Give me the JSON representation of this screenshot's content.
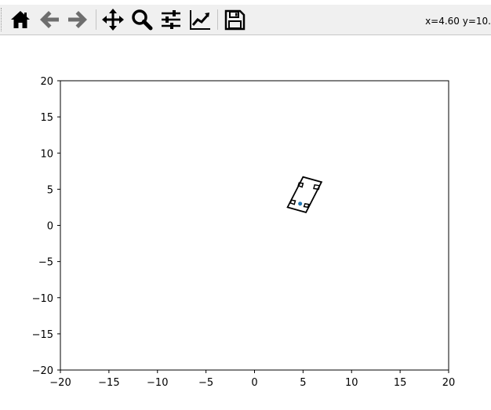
{
  "toolbar": {
    "buttons": [
      {
        "name": "home-button",
        "icon": "home-icon"
      },
      {
        "name": "back-button",
        "icon": "arrow-left-icon"
      },
      {
        "name": "forward-button",
        "icon": "arrow-right-icon"
      },
      {
        "name": "pan-button",
        "icon": "move-arrows-icon"
      },
      {
        "name": "zoom-button",
        "icon": "magnifier-icon"
      },
      {
        "name": "configure-subplots-button",
        "icon": "sliders-icon"
      },
      {
        "name": "edit-axis-button",
        "icon": "line-chart-icon"
      },
      {
        "name": "save-button",
        "icon": "floppy-disk-icon"
      }
    ],
    "coordinates": "x=4.60 y=10."
  },
  "chart_data": {
    "type": "line",
    "title": "",
    "xlabel": "",
    "ylabel": "",
    "xlim": [
      -20,
      20
    ],
    "ylim": [
      -20,
      20
    ],
    "xticks": [
      "−20",
      "−15",
      "−10",
      "−5",
      "0",
      "5",
      "10",
      "15",
      "20"
    ],
    "yticks": [
      "−20",
      "−15",
      "−10",
      "−5",
      "0",
      "5",
      "10",
      "15",
      "20"
    ],
    "xtick_values": [
      -20,
      -15,
      -10,
      -5,
      0,
      5,
      10,
      15,
      20
    ],
    "ytick_values": [
      -20,
      -15,
      -10,
      -5,
      0,
      5,
      10,
      15,
      20
    ],
    "grid": false,
    "series": [
      {
        "kind": "polygon",
        "color": "#000000",
        "points": [
          [
            3.4,
            2.5
          ],
          [
            5.3,
            1.8
          ],
          [
            6.9,
            6.0
          ],
          [
            5.0,
            6.7
          ]
        ]
      },
      {
        "kind": "polygon",
        "color": "#000000",
        "points": [
          [
            4.5,
            5.5
          ],
          [
            4.9,
            5.3
          ],
          [
            5.0,
            5.8
          ],
          [
            4.6,
            5.9
          ]
        ]
      },
      {
        "kind": "polygon",
        "color": "#000000",
        "points": [
          [
            6.1,
            5.1
          ],
          [
            6.6,
            5.0
          ],
          [
            6.7,
            5.5
          ],
          [
            6.2,
            5.6
          ]
        ]
      },
      {
        "kind": "polygon",
        "color": "#000000",
        "points": [
          [
            3.7,
            3.1
          ],
          [
            4.1,
            2.9
          ],
          [
            4.2,
            3.4
          ],
          [
            3.8,
            3.5
          ]
        ]
      },
      {
        "kind": "polygon",
        "color": "#000000",
        "points": [
          [
            5.1,
            2.6
          ],
          [
            5.5,
            2.5
          ],
          [
            5.6,
            2.9
          ],
          [
            5.2,
            3.0
          ]
        ]
      },
      {
        "kind": "marker",
        "color": "#1f77b4",
        "points": [
          [
            4.7,
            3.0
          ]
        ]
      }
    ]
  }
}
